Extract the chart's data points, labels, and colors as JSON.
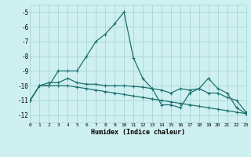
{
  "xlabel": "Humidex (Indice chaleur)",
  "xlim": [
    0,
    23
  ],
  "ylim": [
    -12.5,
    -4.5
  ],
  "yticks": [
    -12,
    -11,
    -10,
    -9,
    -8,
    -7,
    -6,
    -5
  ],
  "xticks": [
    0,
    1,
    2,
    3,
    4,
    5,
    6,
    7,
    8,
    9,
    10,
    11,
    12,
    13,
    14,
    15,
    16,
    17,
    18,
    19,
    20,
    21,
    22,
    23
  ],
  "bg_color": "#cff0f0",
  "grid_color": "#a8d4d4",
  "line_color": "#1e7070",
  "s1_x": [
    0,
    1,
    2,
    3,
    4,
    5,
    6,
    7,
    8,
    9,
    10,
    11,
    12,
    13,
    14,
    15,
    16,
    17,
    18,
    19,
    20,
    21,
    22,
    23
  ],
  "s1_y": [
    -11.0,
    -10.0,
    -10.0,
    -9.0,
    -9.0,
    -9.0,
    -8.0,
    -7.0,
    -6.5,
    -5.8,
    -5.0,
    -8.1,
    -9.5,
    -10.2,
    -11.3,
    -11.3,
    -11.5,
    -10.5,
    -10.2,
    -9.5,
    -10.2,
    -10.5,
    -11.5,
    -11.9
  ],
  "s2_x": [
    0,
    1,
    2,
    3,
    4,
    5,
    6,
    7,
    8,
    9,
    10,
    11,
    12,
    13,
    14,
    15,
    16,
    17,
    18,
    19,
    20,
    21,
    22,
    23
  ],
  "s2_y": [
    -11.0,
    -10.0,
    -9.8,
    -9.8,
    -9.5,
    -9.8,
    -9.9,
    -9.9,
    -10.0,
    -10.0,
    -10.0,
    -10.05,
    -10.1,
    -10.2,
    -10.3,
    -10.5,
    -10.2,
    -10.3,
    -10.2,
    -10.5,
    -10.5,
    -10.8,
    -11.0,
    -11.8
  ],
  "s3_x": [
    0,
    1,
    2,
    3,
    4,
    5,
    6,
    7,
    8,
    9,
    10,
    11,
    12,
    13,
    14,
    15,
    16,
    17,
    18,
    19,
    20,
    21,
    22,
    23
  ],
  "s3_y": [
    -11.0,
    -10.0,
    -10.0,
    -10.0,
    -10.0,
    -10.1,
    -10.2,
    -10.3,
    -10.4,
    -10.5,
    -10.6,
    -10.7,
    -10.8,
    -10.9,
    -11.0,
    -11.1,
    -11.2,
    -11.3,
    -11.4,
    -11.5,
    -11.6,
    -11.7,
    -11.8,
    -11.9
  ]
}
